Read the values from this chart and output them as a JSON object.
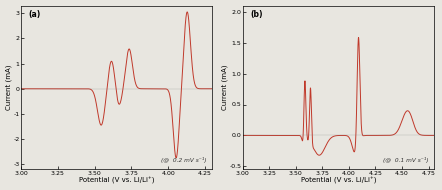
{
  "line_color": "#c0392b",
  "background_color": "#e8e6e0",
  "panel_a": {
    "label": "(a)",
    "xlabel": "Potential (V vs. Li/Li⁺)",
    "ylabel": "Current (mA)",
    "annotation": "(@  0.2 mV s⁻¹)",
    "xlim": [
      3.0,
      4.3
    ],
    "ylim": [
      -3.2,
      3.3
    ],
    "xticks": [
      3.0,
      3.25,
      3.5,
      3.75,
      4.0,
      4.25
    ],
    "yticks": [
      -3,
      -2,
      -1,
      0,
      1,
      2,
      3
    ]
  },
  "panel_b": {
    "label": "(b)",
    "xlabel": "Potential (V vs. Li/Li⁺)",
    "ylabel": "Current (mA)",
    "annotation": "(@  0.1 mV s⁻¹)",
    "xlim": [
      3.0,
      4.8
    ],
    "ylim": [
      -0.55,
      2.1
    ],
    "xticks": [
      3.0,
      3.25,
      3.5,
      3.75,
      4.0,
      4.25,
      4.5,
      4.75
    ],
    "yticks": [
      -0.5,
      0.0,
      0.5,
      1.0,
      1.5,
      2.0
    ]
  }
}
